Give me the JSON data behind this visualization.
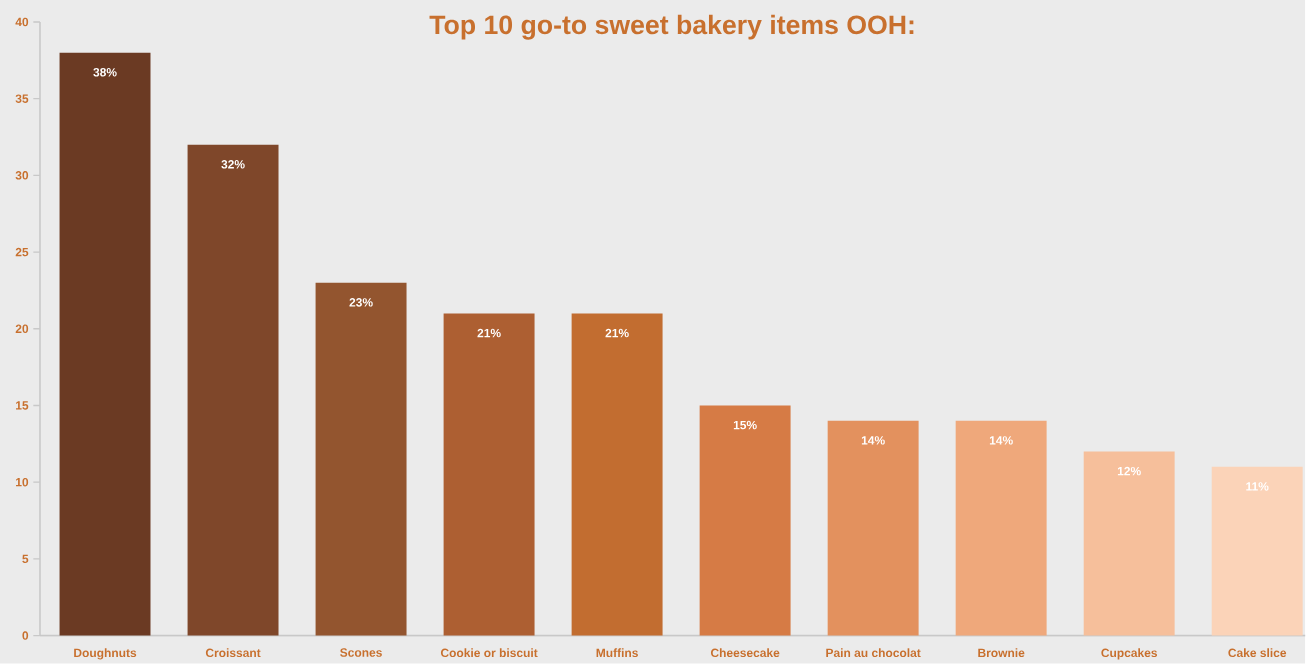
{
  "chart_data": {
    "type": "bar",
    "title": "Top 10 go-to sweet bakery items OOH:",
    "categories": [
      "Doughnuts",
      "Croissant",
      "Scones",
      "Cookie or biscuit",
      "Muffins",
      "Cheesecake",
      "Pain au chocolat",
      "Brownie",
      "Cupcakes",
      "Cake slice"
    ],
    "values": [
      38,
      32,
      23,
      21,
      21,
      15,
      14,
      14,
      12,
      11
    ],
    "value_labels": [
      "38%",
      "32%",
      "23%",
      "21%",
      "21%",
      "15%",
      "14%",
      "14%",
      "12%",
      "11%"
    ],
    "colors": [
      "#6b3a23",
      "#7f472a",
      "#93552f",
      "#ad5f32",
      "#c26d30",
      "#d67b45",
      "#e3915e",
      "#efa87b",
      "#f6bf9b",
      "#fbd3b8"
    ],
    "ylim": [
      0,
      40
    ],
    "yticks": [
      0,
      5,
      10,
      15,
      20,
      25,
      30,
      35,
      40
    ]
  }
}
